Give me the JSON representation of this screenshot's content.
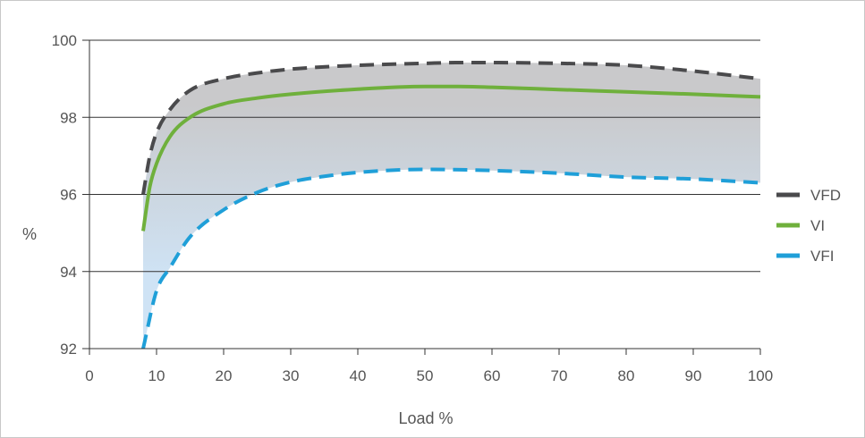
{
  "chart_data": {
    "type": "line",
    "xlabel": "Load %",
    "ylabel": "%",
    "xlim": [
      0,
      100
    ],
    "ylim": [
      92,
      100
    ],
    "x_ticks": [
      "0",
      "10",
      "20",
      "30",
      "40",
      "50",
      "60",
      "70",
      "80",
      "90",
      "100"
    ],
    "y_ticks": [
      "92",
      "94",
      "96",
      "98",
      "100"
    ],
    "grid": "horizontal",
    "legend_position": "right",
    "shaded_band": {
      "between": [
        "VFD",
        "VFI"
      ],
      "colors": [
        "#c9c9cb",
        "#cfe3f5"
      ]
    },
    "series": [
      {
        "name": "VFD",
        "color": "#4a4a4c",
        "dash": "dashed",
        "x": [
          8,
          9,
          10,
          12,
          15,
          20,
          25,
          30,
          40,
          50,
          55,
          60,
          70,
          80,
          90,
          100
        ],
        "y": [
          96.0,
          97.0,
          97.6,
          98.2,
          98.7,
          99.0,
          99.15,
          99.25,
          99.35,
          99.4,
          99.42,
          99.42,
          99.4,
          99.35,
          99.2,
          99.0
        ]
      },
      {
        "name": "VI",
        "color": "#6fb03c",
        "dash": "solid",
        "x": [
          8,
          9,
          10,
          12,
          15,
          20,
          25,
          30,
          40,
          50,
          55,
          60,
          70,
          80,
          90,
          100
        ],
        "y": [
          95.05,
          96.2,
          96.8,
          97.5,
          98.0,
          98.35,
          98.5,
          98.6,
          98.73,
          98.8,
          98.8,
          98.78,
          98.72,
          98.66,
          98.6,
          98.53
        ]
      },
      {
        "name": "VFI",
        "color": "#1f9fd8",
        "dash": "dashed",
        "x": [
          8,
          10,
          12,
          15,
          20,
          25,
          30,
          35,
          40,
          50,
          60,
          70,
          80,
          90,
          100
        ],
        "y": [
          92.0,
          93.5,
          94.1,
          94.9,
          95.6,
          96.05,
          96.32,
          96.47,
          96.57,
          96.65,
          96.62,
          96.55,
          96.45,
          96.4,
          96.3
        ]
      }
    ]
  }
}
